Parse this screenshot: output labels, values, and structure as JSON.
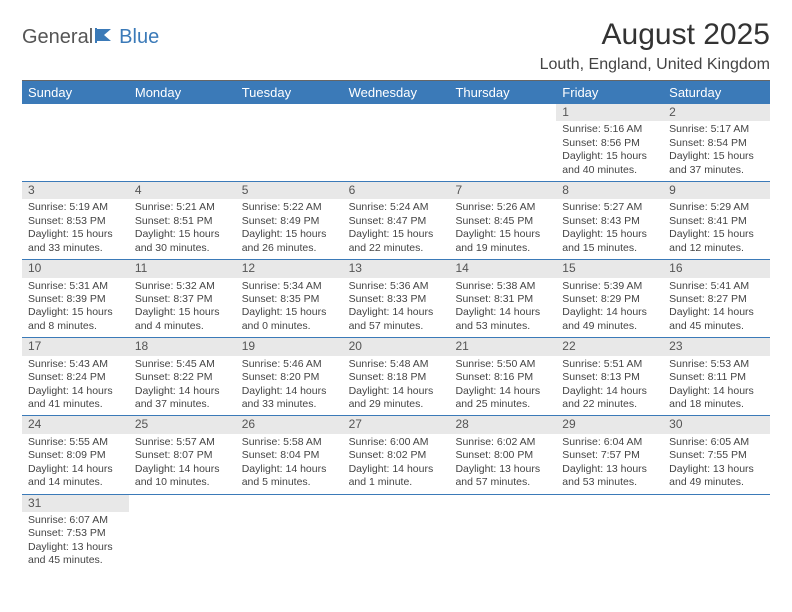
{
  "logo": {
    "general": "General",
    "blue": "Blue"
  },
  "title": "August 2025",
  "location": "Louth, England, United Kingdom",
  "colors": {
    "header_bar": "#3b7ab8",
    "daynum_bg": "#e8e8e8",
    "text": "#444444",
    "title_text": "#333333"
  },
  "weekdays": [
    "Sunday",
    "Monday",
    "Tuesday",
    "Wednesday",
    "Thursday",
    "Friday",
    "Saturday"
  ],
  "weeks": [
    [
      {
        "empty": true
      },
      {
        "empty": true
      },
      {
        "empty": true
      },
      {
        "empty": true
      },
      {
        "empty": true
      },
      {
        "day": "1",
        "sunrise": "Sunrise: 5:16 AM",
        "sunset": "Sunset: 8:56 PM",
        "daylight": "Daylight: 15 hours and 40 minutes."
      },
      {
        "day": "2",
        "sunrise": "Sunrise: 5:17 AM",
        "sunset": "Sunset: 8:54 PM",
        "daylight": "Daylight: 15 hours and 37 minutes."
      }
    ],
    [
      {
        "day": "3",
        "sunrise": "Sunrise: 5:19 AM",
        "sunset": "Sunset: 8:53 PM",
        "daylight": "Daylight: 15 hours and 33 minutes."
      },
      {
        "day": "4",
        "sunrise": "Sunrise: 5:21 AM",
        "sunset": "Sunset: 8:51 PM",
        "daylight": "Daylight: 15 hours and 30 minutes."
      },
      {
        "day": "5",
        "sunrise": "Sunrise: 5:22 AM",
        "sunset": "Sunset: 8:49 PM",
        "daylight": "Daylight: 15 hours and 26 minutes."
      },
      {
        "day": "6",
        "sunrise": "Sunrise: 5:24 AM",
        "sunset": "Sunset: 8:47 PM",
        "daylight": "Daylight: 15 hours and 22 minutes."
      },
      {
        "day": "7",
        "sunrise": "Sunrise: 5:26 AM",
        "sunset": "Sunset: 8:45 PM",
        "daylight": "Daylight: 15 hours and 19 minutes."
      },
      {
        "day": "8",
        "sunrise": "Sunrise: 5:27 AM",
        "sunset": "Sunset: 8:43 PM",
        "daylight": "Daylight: 15 hours and 15 minutes."
      },
      {
        "day": "9",
        "sunrise": "Sunrise: 5:29 AM",
        "sunset": "Sunset: 8:41 PM",
        "daylight": "Daylight: 15 hours and 12 minutes."
      }
    ],
    [
      {
        "day": "10",
        "sunrise": "Sunrise: 5:31 AM",
        "sunset": "Sunset: 8:39 PM",
        "daylight": "Daylight: 15 hours and 8 minutes."
      },
      {
        "day": "11",
        "sunrise": "Sunrise: 5:32 AM",
        "sunset": "Sunset: 8:37 PM",
        "daylight": "Daylight: 15 hours and 4 minutes."
      },
      {
        "day": "12",
        "sunrise": "Sunrise: 5:34 AM",
        "sunset": "Sunset: 8:35 PM",
        "daylight": "Daylight: 15 hours and 0 minutes."
      },
      {
        "day": "13",
        "sunrise": "Sunrise: 5:36 AM",
        "sunset": "Sunset: 8:33 PM",
        "daylight": "Daylight: 14 hours and 57 minutes."
      },
      {
        "day": "14",
        "sunrise": "Sunrise: 5:38 AM",
        "sunset": "Sunset: 8:31 PM",
        "daylight": "Daylight: 14 hours and 53 minutes."
      },
      {
        "day": "15",
        "sunrise": "Sunrise: 5:39 AM",
        "sunset": "Sunset: 8:29 PM",
        "daylight": "Daylight: 14 hours and 49 minutes."
      },
      {
        "day": "16",
        "sunrise": "Sunrise: 5:41 AM",
        "sunset": "Sunset: 8:27 PM",
        "daylight": "Daylight: 14 hours and 45 minutes."
      }
    ],
    [
      {
        "day": "17",
        "sunrise": "Sunrise: 5:43 AM",
        "sunset": "Sunset: 8:24 PM",
        "daylight": "Daylight: 14 hours and 41 minutes."
      },
      {
        "day": "18",
        "sunrise": "Sunrise: 5:45 AM",
        "sunset": "Sunset: 8:22 PM",
        "daylight": "Daylight: 14 hours and 37 minutes."
      },
      {
        "day": "19",
        "sunrise": "Sunrise: 5:46 AM",
        "sunset": "Sunset: 8:20 PM",
        "daylight": "Daylight: 14 hours and 33 minutes."
      },
      {
        "day": "20",
        "sunrise": "Sunrise: 5:48 AM",
        "sunset": "Sunset: 8:18 PM",
        "daylight": "Daylight: 14 hours and 29 minutes."
      },
      {
        "day": "21",
        "sunrise": "Sunrise: 5:50 AM",
        "sunset": "Sunset: 8:16 PM",
        "daylight": "Daylight: 14 hours and 25 minutes."
      },
      {
        "day": "22",
        "sunrise": "Sunrise: 5:51 AM",
        "sunset": "Sunset: 8:13 PM",
        "daylight": "Daylight: 14 hours and 22 minutes."
      },
      {
        "day": "23",
        "sunrise": "Sunrise: 5:53 AM",
        "sunset": "Sunset: 8:11 PM",
        "daylight": "Daylight: 14 hours and 18 minutes."
      }
    ],
    [
      {
        "day": "24",
        "sunrise": "Sunrise: 5:55 AM",
        "sunset": "Sunset: 8:09 PM",
        "daylight": "Daylight: 14 hours and 14 minutes."
      },
      {
        "day": "25",
        "sunrise": "Sunrise: 5:57 AM",
        "sunset": "Sunset: 8:07 PM",
        "daylight": "Daylight: 14 hours and 10 minutes."
      },
      {
        "day": "26",
        "sunrise": "Sunrise: 5:58 AM",
        "sunset": "Sunset: 8:04 PM",
        "daylight": "Daylight: 14 hours and 5 minutes."
      },
      {
        "day": "27",
        "sunrise": "Sunrise: 6:00 AM",
        "sunset": "Sunset: 8:02 PM",
        "daylight": "Daylight: 14 hours and 1 minute."
      },
      {
        "day": "28",
        "sunrise": "Sunrise: 6:02 AM",
        "sunset": "Sunset: 8:00 PM",
        "daylight": "Daylight: 13 hours and 57 minutes."
      },
      {
        "day": "29",
        "sunrise": "Sunrise: 6:04 AM",
        "sunset": "Sunset: 7:57 PM",
        "daylight": "Daylight: 13 hours and 53 minutes."
      },
      {
        "day": "30",
        "sunrise": "Sunrise: 6:05 AM",
        "sunset": "Sunset: 7:55 PM",
        "daylight": "Daylight: 13 hours and 49 minutes."
      }
    ],
    [
      {
        "day": "31",
        "sunrise": "Sunrise: 6:07 AM",
        "sunset": "Sunset: 7:53 PM",
        "daylight": "Daylight: 13 hours and 45 minutes."
      },
      {
        "empty": true
      },
      {
        "empty": true
      },
      {
        "empty": true
      },
      {
        "empty": true
      },
      {
        "empty": true
      },
      {
        "empty": true
      }
    ]
  ]
}
